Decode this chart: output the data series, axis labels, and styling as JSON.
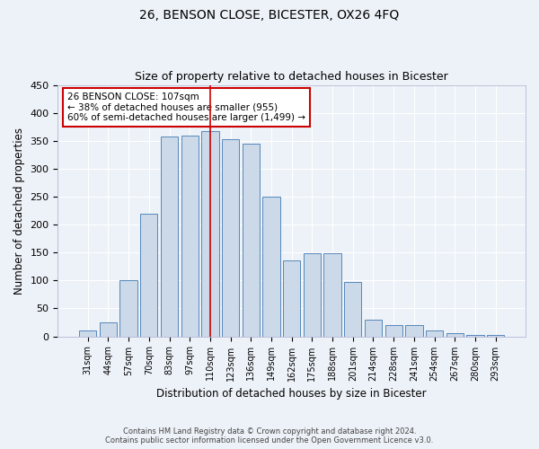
{
  "title": "26, BENSON CLOSE, BICESTER, OX26 4FQ",
  "subtitle": "Size of property relative to detached houses in Bicester",
  "xlabel": "Distribution of detached houses by size in Bicester",
  "ylabel": "Number of detached properties",
  "footer_line1": "Contains HM Land Registry data © Crown copyright and database right 2024.",
  "footer_line2": "Contains public sector information licensed under the Open Government Licence v3.0.",
  "bar_labels": [
    "31sqm",
    "44sqm",
    "57sqm",
    "70sqm",
    "83sqm",
    "97sqm",
    "110sqm",
    "123sqm",
    "136sqm",
    "149sqm",
    "162sqm",
    "175sqm",
    "188sqm",
    "201sqm",
    "214sqm",
    "228sqm",
    "241sqm",
    "254sqm",
    "267sqm",
    "280sqm",
    "293sqm"
  ],
  "bar_values": [
    10,
    25,
    100,
    220,
    358,
    360,
    368,
    353,
    345,
    250,
    136,
    148,
    148,
    97,
    30,
    20,
    20,
    10,
    5,
    3,
    3
  ],
  "bar_color": "#ccd9e8",
  "bar_edge_color": "#5588bb",
  "vline_x_index": 6,
  "vline_color": "#cc0000",
  "annotation_text": "26 BENSON CLOSE: 107sqm\n← 38% of detached houses are smaller (955)\n60% of semi-detached houses are larger (1,499) →",
  "annotation_box_color": "#ffffff",
  "annotation_box_edge_color": "#cc0000",
  "ylim": [
    0,
    450
  ],
  "yticks": [
    0,
    50,
    100,
    150,
    200,
    250,
    300,
    350,
    400,
    450
  ],
  "background_color": "#edf2f8",
  "plot_bg_color": "#edf2f8",
  "title_fontsize": 10,
  "subtitle_fontsize": 9,
  "xlabel_fontsize": 8.5,
  "ylabel_fontsize": 8.5
}
